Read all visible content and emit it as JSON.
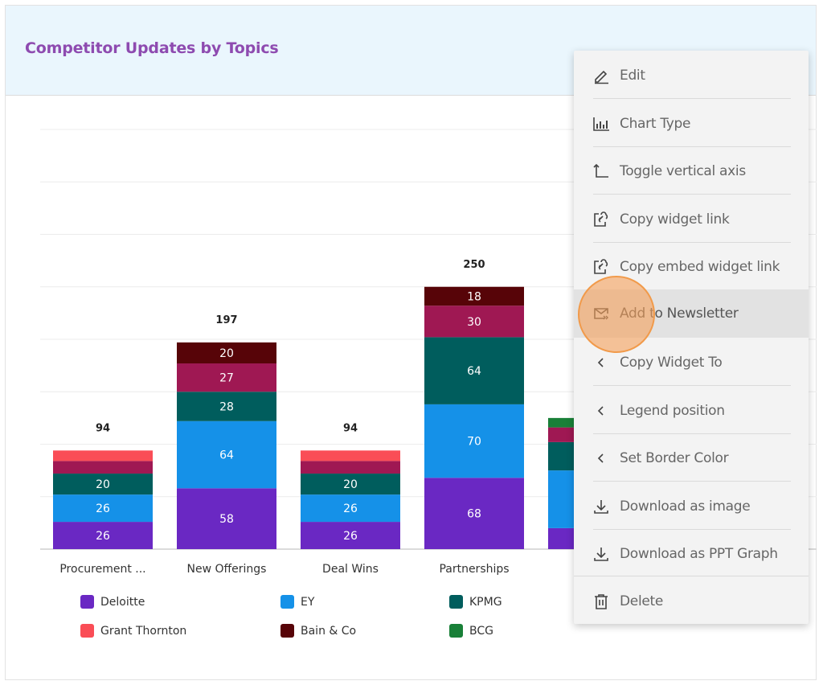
{
  "widget": {
    "title": "Competitor Updates by Topics"
  },
  "colors": {
    "title": "#8e4bb0",
    "header_bg": "#eaf6fd",
    "menu_bg": "#f3f3f3",
    "menu_active_bg": "#e2e2e2",
    "click_marker": "#f19a4a"
  },
  "chart_data": {
    "type": "bar",
    "stacked": true,
    "title": "Competitor Updates by Topics",
    "xlabel": "",
    "ylabel": "",
    "ylim": [
      0,
      400
    ],
    "ytick_step": 50,
    "grid": true,
    "legend_position": "bottom",
    "categories": [
      "Procurement ...",
      "New Offerings",
      "Deal Wins",
      "Partnerships",
      ""
    ],
    "totals": [
      "94",
      "197",
      "94",
      "250",
      ""
    ],
    "series": [
      {
        "name": "Deloitte",
        "color": "#6a28c3",
        "values": [
          26,
          58,
          26,
          68,
          20
        ],
        "labels": [
          "26",
          "58",
          "26",
          "68",
          ""
        ]
      },
      {
        "name": "EY",
        "color": "#1591e8",
        "values": [
          26,
          64,
          26,
          70,
          55
        ],
        "labels": [
          "26",
          "64",
          "26",
          "70",
          ""
        ]
      },
      {
        "name": "KPMG",
        "color": "#005d5d",
        "values": [
          20,
          28,
          20,
          64,
          27
        ],
        "labels": [
          "20",
          "28",
          "20",
          "64",
          ""
        ]
      },
      {
        "name": "",
        "color": "#9f1853",
        "values": [
          12,
          27,
          12,
          30,
          14
        ],
        "labels": [
          "",
          "27",
          "",
          "30",
          ""
        ]
      },
      {
        "name": "Grant Thornton",
        "color": "#fa4d56",
        "values": [
          10,
          0,
          10,
          0,
          0
        ],
        "labels": [
          "",
          "",
          "",
          "",
          ""
        ]
      },
      {
        "name": "Bain & Co",
        "color": "#570408",
        "values": [
          0,
          20,
          0,
          18,
          0
        ],
        "labels": [
          "",
          "20",
          "",
          "18",
          ""
        ]
      },
      {
        "name": "BCG",
        "color": "#198038",
        "values": [
          0,
          0,
          0,
          0,
          9
        ],
        "labels": [
          "",
          "",
          "",
          "",
          ""
        ]
      }
    ]
  },
  "legend": [
    {
      "label": "Deloitte",
      "color": "#6a28c3"
    },
    {
      "label": "EY",
      "color": "#1591e8"
    },
    {
      "label": "KPMG",
      "color": "#005d5d"
    },
    {
      "label": "Grant Thornton",
      "color": "#fa4d56"
    },
    {
      "label": "Bain & Co",
      "color": "#570408"
    },
    {
      "label": "BCG",
      "color": "#198038"
    }
  ],
  "menu": {
    "items": [
      {
        "label": "Edit",
        "icon": "pencil-icon"
      },
      {
        "label": "Chart Type",
        "icon": "bar-chart-icon"
      },
      {
        "label": "Toggle vertical axis",
        "icon": "axis-icon"
      },
      {
        "label": "Copy widget link",
        "icon": "copy-link-icon"
      },
      {
        "label": "Copy embed widget link",
        "icon": "copy-link-icon"
      },
      {
        "label": "Add to Newsletter",
        "icon": "newsletter-icon",
        "active": true
      },
      {
        "label": "Copy Widget To",
        "icon": "chevron-left-icon"
      },
      {
        "label": "Legend position",
        "icon": "chevron-left-icon"
      },
      {
        "label": "Set Border Color",
        "icon": "chevron-left-icon"
      },
      {
        "label": "Download as image",
        "icon": "download-icon"
      },
      {
        "label": "Download as PPT Graph",
        "icon": "download-icon"
      },
      {
        "label": "Delete",
        "icon": "trash-icon"
      }
    ]
  }
}
